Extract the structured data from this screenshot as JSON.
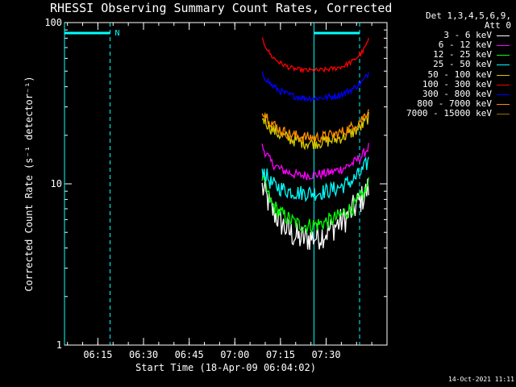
{
  "page": {
    "title": "RHESSI Observing Summary Count Rates, Corrected",
    "timestamp": "14-Oct-2021 11:11"
  },
  "legend": {
    "header_line1": "Det 1,3,4,5,6,9,",
    "header_line2": "Att 0",
    "items": [
      {
        "label": "3 - 6 keV",
        "color": "#ffffff"
      },
      {
        "label": "6 - 12 keV",
        "color": "#ff00ff"
      },
      {
        "label": "12 - 25 keV",
        "color": "#00ff00"
      },
      {
        "label": "25 - 50 keV",
        "color": "#00ffff"
      },
      {
        "label": "50 - 100 keV",
        "color": "#d8c800"
      },
      {
        "label": "100 - 300 keV",
        "color": "#ff0000"
      },
      {
        "label": "300 - 800 keV",
        "color": "#0000ff"
      },
      {
        "label": "800 - 7000 keV",
        "color": "#ff8c00"
      },
      {
        "label": "7000 - 15000 keV",
        "color": "#9a7000"
      }
    ]
  },
  "chart_data": {
    "type": "line",
    "title": "RHESSI Observing Summary Count Rates, Corrected",
    "xlabel": "Start Time (18-Apr-09 06:04:02)",
    "ylabel": "Corrected Count Rate (s⁻¹ detector⁻¹)",
    "yscale": "log",
    "ylim": [
      1,
      100
    ],
    "yticks": [
      "1",
      "10",
      "100"
    ],
    "xlim": [
      "06:04:02",
      "07:50:00"
    ],
    "xticks": [
      "06:15",
      "06:30",
      "06:45",
      "07:00",
      "07:15",
      "07:30"
    ],
    "series": [
      {
        "name": "3 - 6 keV",
        "color": "#ffffff",
        "x": [
          "07:09",
          "07:12",
          "07:15",
          "07:18",
          "07:21",
          "07:24",
          "07:27",
          "07:30",
          "07:33",
          "07:36",
          "07:39",
          "07:42",
          "07:44"
        ],
        "y": [
          9.5,
          7.0,
          5.8,
          5.0,
          4.6,
          4.6,
          4.7,
          5.0,
          5.5,
          6.0,
          7.0,
          8.2,
          9.5
        ]
      },
      {
        "name": "6 - 12 keV",
        "color": "#ff00ff",
        "x": [
          "07:09",
          "07:12",
          "07:15",
          "07:18",
          "07:21",
          "07:24",
          "07:27",
          "07:30",
          "07:33",
          "07:36",
          "07:39",
          "07:42",
          "07:44"
        ],
        "y": [
          17.0,
          13.5,
          12.3,
          11.7,
          11.3,
          11.3,
          11.4,
          11.6,
          12.0,
          12.6,
          13.5,
          15.0,
          17.0
        ]
      },
      {
        "name": "12 - 25 keV",
        "color": "#00ff00",
        "x": [
          "07:09",
          "07:12",
          "07:15",
          "07:18",
          "07:21",
          "07:24",
          "07:27",
          "07:30",
          "07:33",
          "07:36",
          "07:39",
          "07:42",
          "07:44"
        ],
        "y": [
          11.0,
          7.5,
          6.6,
          6.0,
          5.6,
          5.5,
          5.6,
          5.8,
          6.1,
          6.6,
          7.2,
          8.4,
          10.0
        ]
      },
      {
        "name": "25 - 50 keV",
        "color": "#00ffff",
        "x": [
          "07:09",
          "07:12",
          "07:15",
          "07:18",
          "07:21",
          "07:24",
          "07:27",
          "07:30",
          "07:33",
          "07:36",
          "07:39",
          "07:42",
          "07:44"
        ],
        "y": [
          12.5,
          10.0,
          9.4,
          9.0,
          8.8,
          8.8,
          8.8,
          9.0,
          9.3,
          9.8,
          10.6,
          12.0,
          14.0
        ]
      },
      {
        "name": "50 - 100 keV",
        "color": "#d8c800",
        "x": [
          "07:09",
          "07:12",
          "07:15",
          "07:18",
          "07:21",
          "07:24",
          "07:27",
          "07:30",
          "07:33",
          "07:36",
          "07:39",
          "07:42",
          "07:44"
        ],
        "y": [
          26.0,
          22.0,
          20.0,
          19.0,
          18.3,
          18.0,
          18.0,
          18.3,
          18.8,
          19.8,
          21.0,
          23.0,
          26.0
        ]
      },
      {
        "name": "100 - 300 keV",
        "color": "#ff0000",
        "x": [
          "07:09",
          "07:12",
          "07:15",
          "07:18",
          "07:21",
          "07:24",
          "07:27",
          "07:30",
          "07:33",
          "07:36",
          "07:39",
          "07:42",
          "07:44"
        ],
        "y": [
          78.0,
          62.0,
          56.0,
          52.5,
          51.0,
          50.5,
          50.5,
          51.0,
          52.0,
          54.0,
          58.0,
          66.0,
          78.0
        ]
      },
      {
        "name": "300 - 800 keV",
        "color": "#0000ff",
        "x": [
          "07:09",
          "07:12",
          "07:15",
          "07:18",
          "07:21",
          "07:24",
          "07:27",
          "07:30",
          "07:33",
          "07:36",
          "07:39",
          "07:42",
          "07:44"
        ],
        "y": [
          48.0,
          41.0,
          37.5,
          35.5,
          34.5,
          34.0,
          34.0,
          34.3,
          35.0,
          36.5,
          39.0,
          43.0,
          49.0
        ]
      },
      {
        "name": "800 - 7000 keV",
        "color": "#ff8c00",
        "x": [
          "07:09",
          "07:12",
          "07:15",
          "07:18",
          "07:21",
          "07:24",
          "07:27",
          "07:30",
          "07:33",
          "07:36",
          "07:39",
          "07:42",
          "07:44"
        ],
        "y": [
          29.0,
          24.0,
          21.5,
          20.3,
          19.7,
          19.4,
          19.4,
          19.7,
          20.2,
          21.2,
          22.8,
          25.5,
          29.0
        ]
      }
    ],
    "annotations": {
      "markers": [
        {
          "label": "N",
          "x_start": "06:04:02",
          "x_end": "06:19",
          "color": "#00ffff"
        }
      ],
      "bars": [
        {
          "x_start": "07:26",
          "x_end": "07:41",
          "color": "#00ffff"
        }
      ],
      "vlines": [
        {
          "x": "06:04:02",
          "style": "solid",
          "color": "#00ffff"
        },
        {
          "x": "06:19",
          "style": "dashed",
          "color": "#00ffff"
        },
        {
          "x": "07:26",
          "style": "solid",
          "color": "#00ffff"
        },
        {
          "x": "07:41",
          "style": "dashed",
          "color": "#00ffff"
        }
      ]
    }
  }
}
